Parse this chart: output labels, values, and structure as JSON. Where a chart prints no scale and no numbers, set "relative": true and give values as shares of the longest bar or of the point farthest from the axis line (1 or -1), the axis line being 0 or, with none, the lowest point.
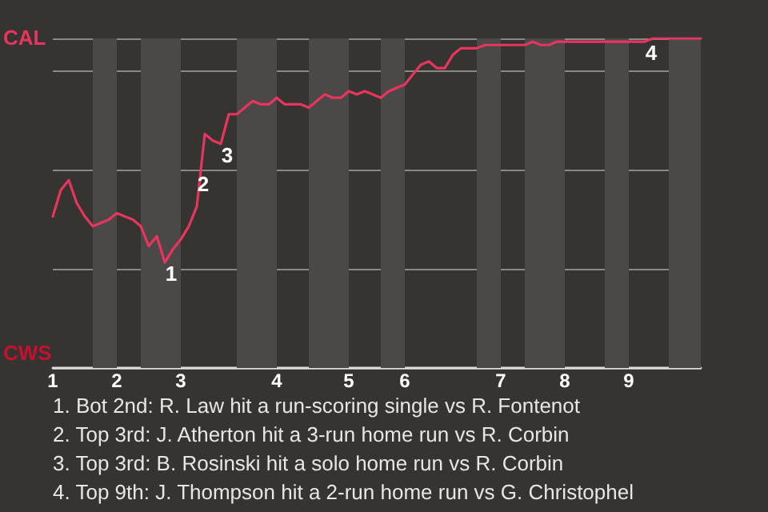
{
  "chart_data": {
    "type": "line",
    "relative": true,
    "color": "#e8345e",
    "grid": "y",
    "line_style": "solid",
    "categories": [
      "1",
      null,
      null,
      null,
      null,
      null,
      null,
      null,
      "2",
      null,
      null,
      null,
      null,
      null,
      null,
      null,
      "3",
      null,
      null,
      null,
      null,
      null,
      null,
      null,
      null,
      null,
      null,
      null,
      "4",
      null,
      null,
      null,
      null,
      null,
      null,
      null,
      null,
      "5",
      null,
      null,
      null,
      null,
      null,
      null,
      "6",
      null,
      null,
      null,
      null,
      null,
      null,
      null,
      null,
      null,
      null,
      null,
      "7",
      null,
      null,
      null,
      null,
      null,
      null,
      null,
      "8",
      null,
      null,
      null,
      null,
      null,
      null,
      null,
      "9",
      null,
      null,
      null,
      null,
      null,
      null,
      null,
      null,
      null
    ],
    "values": [
      0.46,
      0.54,
      0.57,
      0.5,
      0.46,
      0.43,
      0.44,
      0.45,
      0.47,
      0.46,
      0.45,
      0.43,
      0.37,
      0.4,
      0.32,
      0.36,
      0.39,
      0.43,
      0.49,
      0.71,
      0.69,
      0.68,
      0.77,
      0.77,
      0.79,
      0.81,
      0.8,
      0.8,
      0.82,
      0.8,
      0.8,
      0.8,
      0.79,
      0.81,
      0.83,
      0.82,
      0.82,
      0.84,
      0.83,
      0.84,
      0.83,
      0.82,
      0.84,
      0.85,
      0.86,
      0.89,
      0.92,
      0.93,
      0.91,
      0.91,
      0.95,
      0.97,
      0.97,
      0.97,
      0.98,
      0.98,
      0.98,
      0.98,
      0.98,
      0.98,
      0.99,
      0.98,
      0.98,
      0.99,
      0.99,
      0.99,
      0.99,
      0.99,
      0.99,
      0.99,
      0.99,
      0.99,
      0.99,
      0.99,
      0.99,
      1,
      1,
      1,
      1,
      1,
      1,
      1
    ],
    "annotations": [
      "CAL",
      "CWS",
      {
        "text": "1",
        "y": 0.32
      },
      {
        "text": "2",
        "y": 0.49
      },
      {
        "text": "3",
        "y": 0.68
      },
      {
        "text": "4",
        "y": 0.99
      },
      "1. Bot 2nd: R. Law hit a run-scoring single vs R. Fontenot",
      "2. Top 3rd: J. Atherton hit a 3-run home run vs R. Corbin",
      "3. Top 3rd: B. Rosinski hit a solo home run vs R. Corbin",
      "4. Top 9th: J. Thompson hit a 2-run home run vs G. Christophel"
    ]
  }
}
